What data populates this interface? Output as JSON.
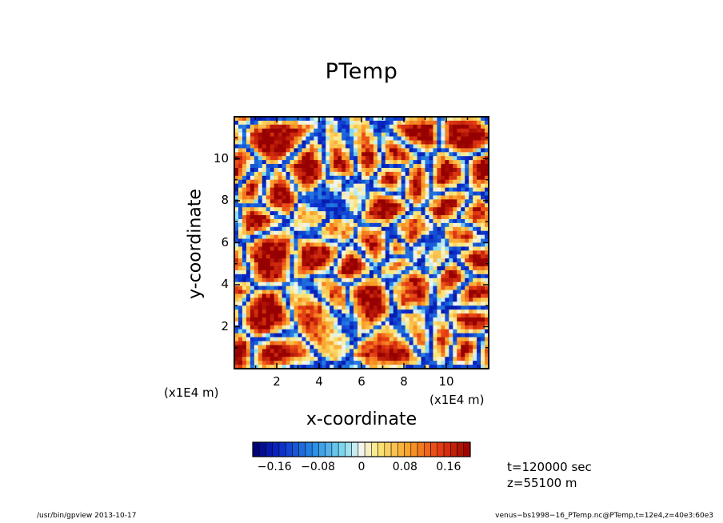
{
  "chart_data": {
    "type": "heatmap",
    "title": "PTemp",
    "xlabel": "x-coordinate",
    "ylabel": "y-coordinate",
    "x_scale_label": "(x1E4 m)",
    "y_scale_label": "(x1E4 m)",
    "xlim": [
      0,
      12
    ],
    "ylim": [
      0,
      12
    ],
    "xticks": [
      2,
      4,
      6,
      8,
      10
    ],
    "xtick_labels": [
      "2",
      "4",
      "6",
      "8",
      "10"
    ],
    "yticks": [
      2,
      4,
      6,
      8,
      10
    ],
    "ytick_labels": [
      "2",
      "4",
      "6",
      "8",
      "10"
    ],
    "colorbar": {
      "range": [
        -0.2,
        0.2
      ],
      "ticks": [
        -0.16,
        -0.08,
        0,
        0.08,
        0.16
      ],
      "tick_labels": [
        "−0.16",
        "−0.08",
        "0",
        "0.08",
        "0.16"
      ],
      "levels": 33
    },
    "annotations": {
      "time": "t=120000 sec",
      "level": "z=55100 m"
    }
  },
  "footer": {
    "left": "/usr/bin/gpview   2013-10-17",
    "right": "venus−bs1998−16_PTemp.nc@PTemp,t=12e4,z=40e3:60e3"
  }
}
